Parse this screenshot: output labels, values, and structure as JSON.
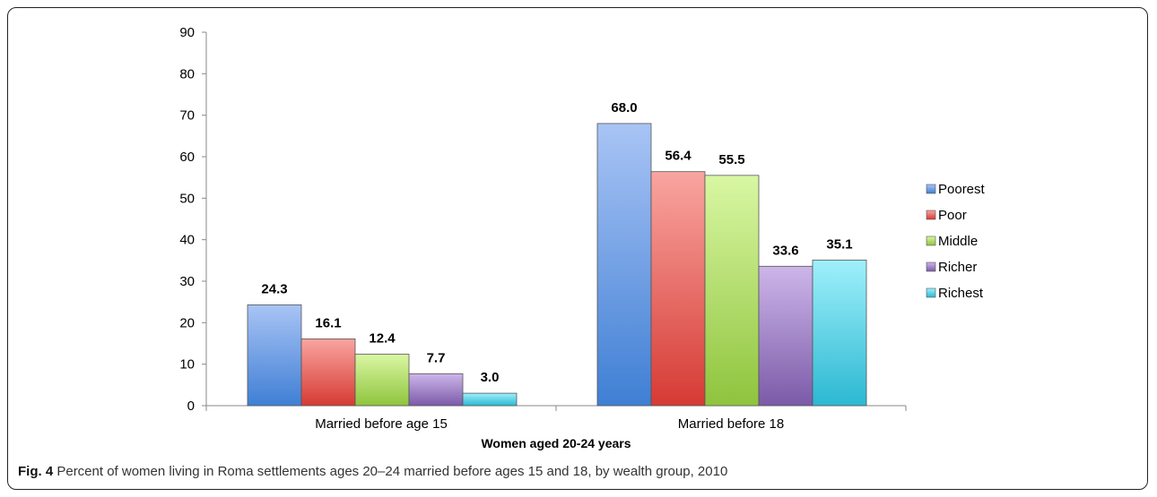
{
  "figure": {
    "label": "Fig. 4",
    "caption": "Percent of women living in Roma settlements ages 20–24 married before ages 15 and 18, by wealth group, 2010"
  },
  "chart_data": {
    "type": "bar",
    "title": "",
    "xlabel": "Women aged 20-24 years",
    "ylabel": "",
    "ylim": [
      0,
      90
    ],
    "yticks": [
      "0",
      "10",
      "20",
      "30",
      "40",
      "50",
      "60",
      "70",
      "80",
      "90"
    ],
    "categories": [
      "Married before age 15",
      "Married before 18"
    ],
    "series": [
      {
        "name": "Poorest",
        "values": [
          24.3,
          68.0
        ],
        "labels": [
          "24.3",
          "68.0"
        ],
        "color_light": "#a9c4f5",
        "color_dark": "#3f7fd4"
      },
      {
        "name": "Poor",
        "values": [
          16.1,
          56.4
        ],
        "labels": [
          "16.1",
          "56.4"
        ],
        "color_light": "#f9a5a0",
        "color_dark": "#d63a34"
      },
      {
        "name": "Middle",
        "values": [
          12.4,
          55.5
        ],
        "labels": [
          "12.4",
          "55.5"
        ],
        "color_light": "#d9f7a3",
        "color_dark": "#8fc43d"
      },
      {
        "name": "Richer",
        "values": [
          7.7,
          33.6
        ],
        "labels": [
          "7.7",
          "33.6"
        ],
        "color_light": "#cdb6ea",
        "color_dark": "#7b5aa8"
      },
      {
        "name": "Richest",
        "values": [
          3.0,
          35.1
        ],
        "labels": [
          "3.0",
          "35.1"
        ],
        "color_light": "#9ff0fb",
        "color_dark": "#2cb8d2"
      }
    ],
    "grid": false,
    "legend_position": "right"
  }
}
